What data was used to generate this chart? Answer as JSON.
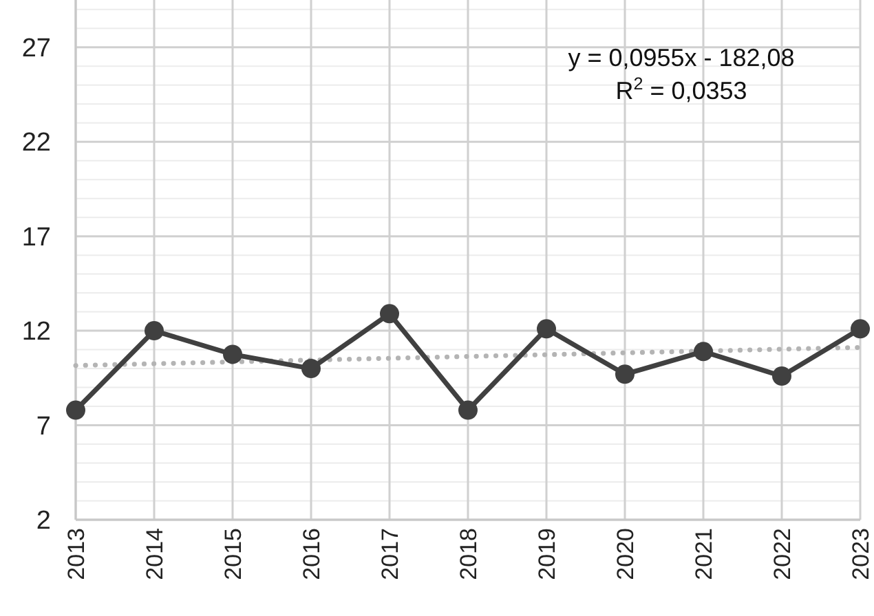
{
  "chart_data": {
    "type": "line",
    "x": [
      2013,
      2014,
      2015,
      2016,
      2017,
      2018,
      2019,
      2020,
      2021,
      2022,
      2023
    ],
    "xlim": [
      2013,
      2023
    ],
    "xticks": [
      2013,
      2014,
      2015,
      2016,
      2017,
      2018,
      2019,
      2020,
      2021,
      2022,
      2023
    ],
    "ylim": [
      2,
      29.5
    ],
    "yticks": [
      2,
      {
        "value": 3,
        "label": null
      },
      {
        "value": 4,
        "label": null
      },
      {
        "value": 5,
        "label": null
      },
      {
        "value": 6,
        "label": null
      },
      7,
      {
        "value": 8,
        "label": null
      },
      {
        "value": 9,
        "label": null
      },
      {
        "value": 10,
        "label": null
      },
      {
        "value": 11,
        "label": null
      },
      12,
      {
        "value": 13,
        "label": null
      },
      {
        "value": 14,
        "label": null
      },
      {
        "value": 15,
        "label": null
      },
      {
        "value": 16,
        "label": null
      },
      17,
      {
        "value": 18,
        "label": null
      },
      {
        "value": 19,
        "label": null
      },
      {
        "value": 20,
        "label": null
      },
      {
        "value": 21,
        "label": null
      },
      22,
      {
        "value": 23,
        "label": null
      },
      {
        "value": 24,
        "label": null
      },
      {
        "value": 25,
        "label": null
      },
      {
        "value": 26,
        "label": null
      },
      27,
      {
        "value": 28,
        "label": null
      },
      {
        "value": 29,
        "label": null
      }
    ],
    "grid": true,
    "series": [
      {
        "color": "#404040",
        "marker": "circle",
        "line_style": "solid",
        "values": [
          7.8,
          12,
          10.75,
          10,
          12.9,
          7.8,
          12.1,
          9.7,
          10.9,
          9.6,
          12.1
        ]
      },
      {
        "color": "#b4b4b4",
        "marker": "none",
        "line_style": "dotted",
        "x": [
          2013,
          2023
        ],
        "values": [
          10.16,
          11.12
        ]
      }
    ],
    "annotations": [
      "y = 0,0955x - 182,08",
      "R$^{2}$ = 0,0353"
    ]
  }
}
